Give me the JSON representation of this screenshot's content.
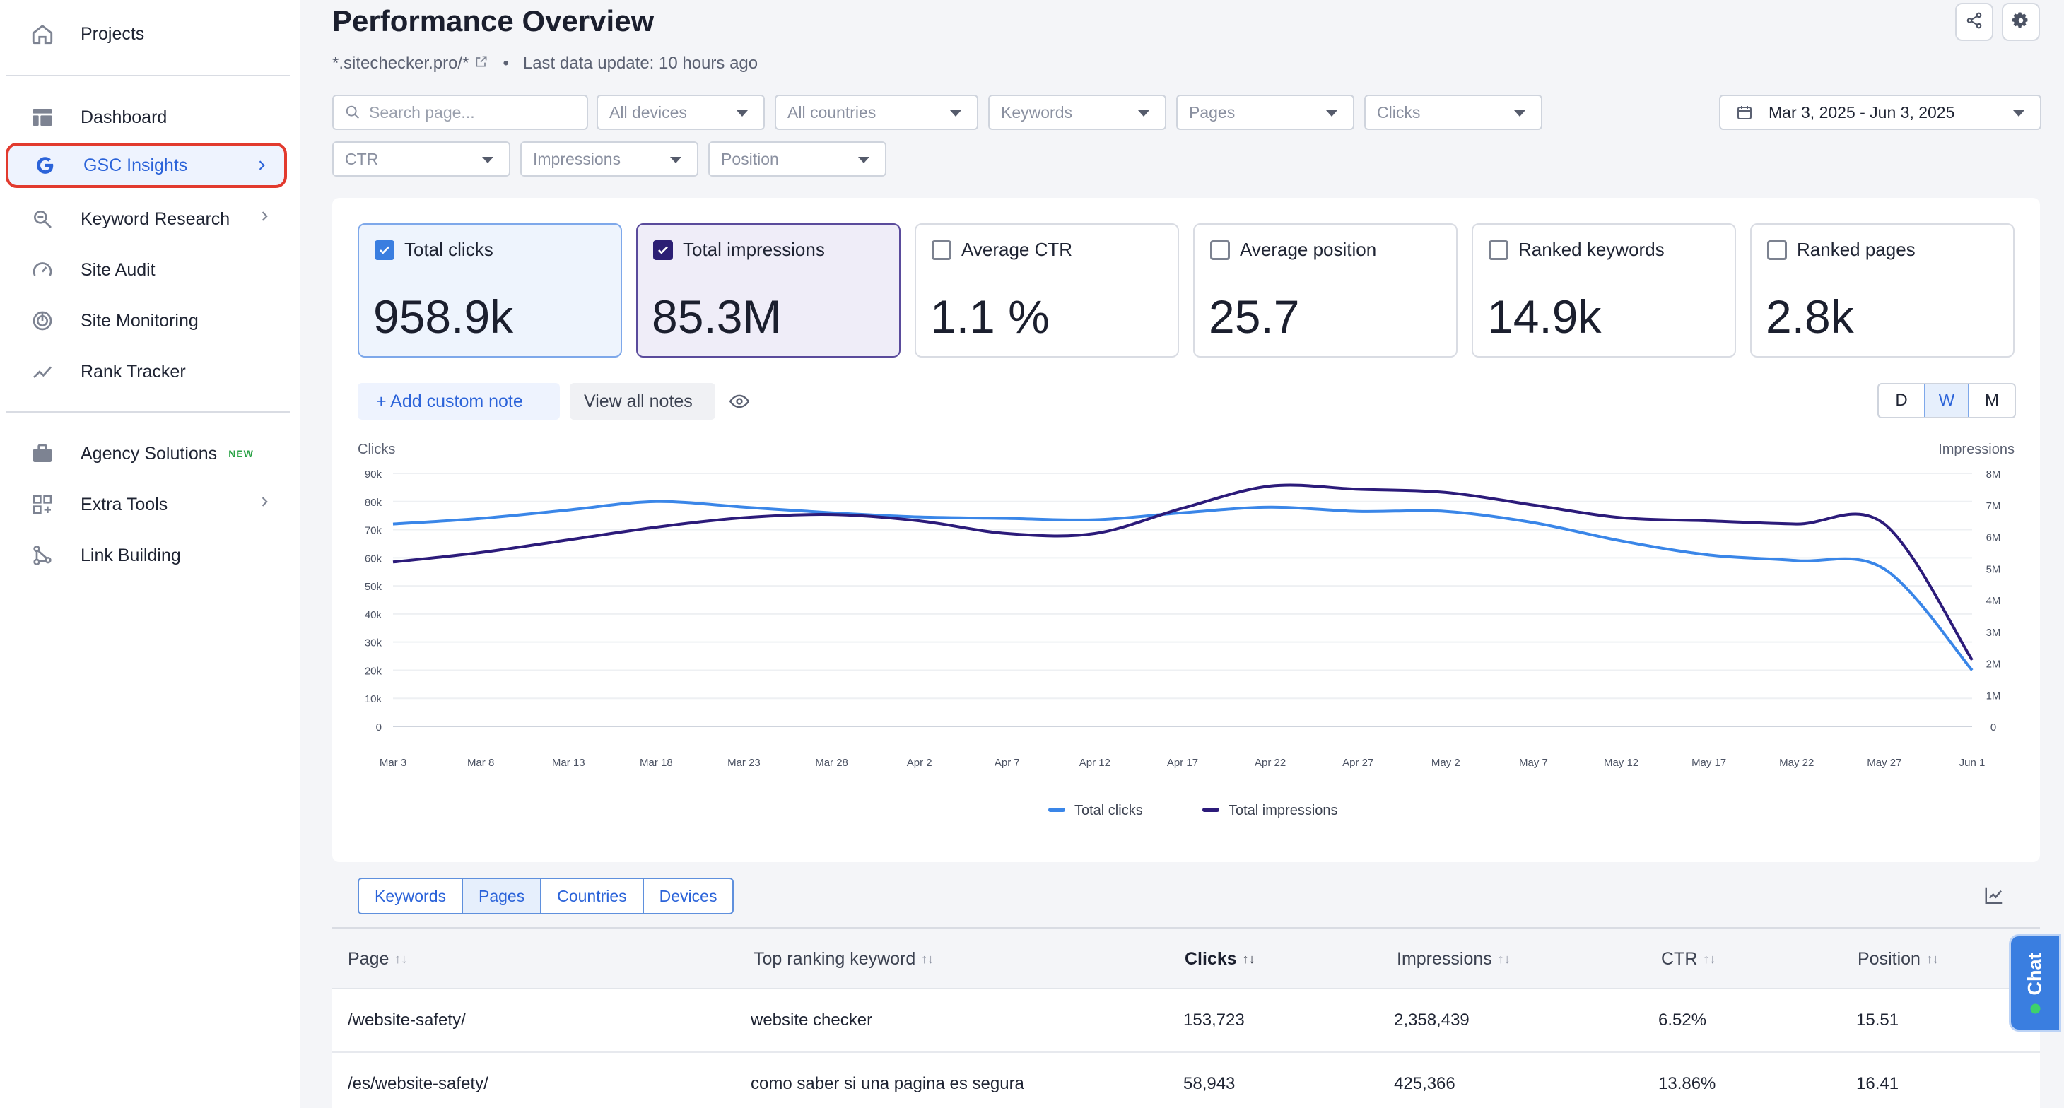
{
  "sidebar": {
    "items": [
      {
        "label": "Projects",
        "icon": "home-icon"
      },
      {
        "label": "Dashboard",
        "icon": "dashboard-icon"
      },
      {
        "label": "GSC Insights",
        "icon": "google-icon"
      },
      {
        "label": "Keyword Research",
        "icon": "keyword-search-icon"
      },
      {
        "label": "Site Audit",
        "icon": "gauge-icon"
      },
      {
        "label": "Site Monitoring",
        "icon": "monitoring-icon"
      },
      {
        "label": "Rank Tracker",
        "icon": "trend-icon"
      },
      {
        "label": "Agency Solutions",
        "icon": "briefcase-icon",
        "badge": "NEW"
      },
      {
        "label": "Extra Tools",
        "icon": "grid-plus-icon"
      },
      {
        "label": "Link Building",
        "icon": "link-graph-icon"
      }
    ]
  },
  "header": {
    "title": "Performance Overview",
    "domain": "*.sitechecker.pro/*",
    "bullet": "•",
    "last_update": "Last data update: 10 hours ago"
  },
  "filters": {
    "search_placeholder": "Search page...",
    "devices": "All devices",
    "countries": "All countries",
    "keywords": "Keywords",
    "pages": "Pages",
    "clicks": "Clicks",
    "ctr": "CTR",
    "impressions": "Impressions",
    "position": "Position",
    "date_range": "Mar 3, 2025 - Jun 3, 2025"
  },
  "metrics": [
    {
      "label": "Total clicks",
      "value": "958.9k",
      "checked": true
    },
    {
      "label": "Total impressions",
      "value": "85.3M",
      "checked": true
    },
    {
      "label": "Average CTR",
      "value": "1.1 %",
      "checked": false
    },
    {
      "label": "Average position",
      "value": "25.7",
      "checked": false
    },
    {
      "label": "Ranked keywords",
      "value": "14.9k",
      "checked": false
    },
    {
      "label": "Ranked pages",
      "value": "2.8k",
      "checked": false
    }
  ],
  "notes": {
    "add_label": "+ Add custom note",
    "view_label": "View all notes"
  },
  "granularity": {
    "d": "D",
    "w": "W",
    "m": "M",
    "selected": "W"
  },
  "colors": {
    "clicks": "#3a86e8",
    "impressions": "#2c1b7a",
    "accent": "#2b63d9",
    "highlight": "#e23a2e"
  },
  "chart_data": {
    "type": "line",
    "ylabel_left": "Clicks",
    "ylabel_right": "Impressions",
    "x": [
      "Mar 3",
      "Mar 8",
      "Mar 13",
      "Mar 18",
      "Mar 23",
      "Mar 28",
      "Apr 2",
      "Apr 7",
      "Apr 12",
      "Apr 17",
      "Apr 22",
      "Apr 27",
      "May 2",
      "May 7",
      "May 12",
      "May 17",
      "May 22",
      "May 27",
      "Jun 1"
    ],
    "ylim_left": [
      0,
      90000
    ],
    "ylim_right": [
      0,
      8000000
    ],
    "yticks_left": [
      "0",
      "10k",
      "20k",
      "30k",
      "40k",
      "50k",
      "60k",
      "70k",
      "80k",
      "90k"
    ],
    "yticks_right": [
      "0",
      "1M",
      "2M",
      "3M",
      "4M",
      "5M",
      "6M",
      "7M",
      "8M"
    ],
    "series": [
      {
        "name": "Total clicks",
        "axis": "left",
        "values": [
          72000,
          74000,
          77000,
          80000,
          78000,
          76000,
          74500,
          74000,
          73500,
          76000,
          78000,
          76500,
          76500,
          72500,
          66000,
          61000,
          59000,
          56000,
          20000
        ]
      },
      {
        "name": "Total impressions",
        "axis": "right",
        "values": [
          5200000,
          5500000,
          5900000,
          6300000,
          6600000,
          6700000,
          6500000,
          6100000,
          6100000,
          6900000,
          7600000,
          7500000,
          7400000,
          7000000,
          6600000,
          6500000,
          6400000,
          6400000,
          2100000
        ]
      }
    ]
  },
  "table": {
    "tabs": [
      "Keywords",
      "Pages",
      "Countries",
      "Devices"
    ],
    "selected_tab": "Pages",
    "columns": [
      "Page",
      "Top ranking keyword",
      "Clicks",
      "Impressions",
      "CTR",
      "Position"
    ],
    "sort_column": "Clicks",
    "rows": [
      [
        "/website-safety/",
        "website checker",
        "153,723",
        "2,358,439",
        "6.52%",
        "15.51"
      ],
      [
        "/es/website-safety/",
        "como saber si una pagina es segura",
        "58,943",
        "425,366",
        "13.86%",
        "16.41"
      ]
    ]
  },
  "chat": {
    "label": "Chat"
  }
}
